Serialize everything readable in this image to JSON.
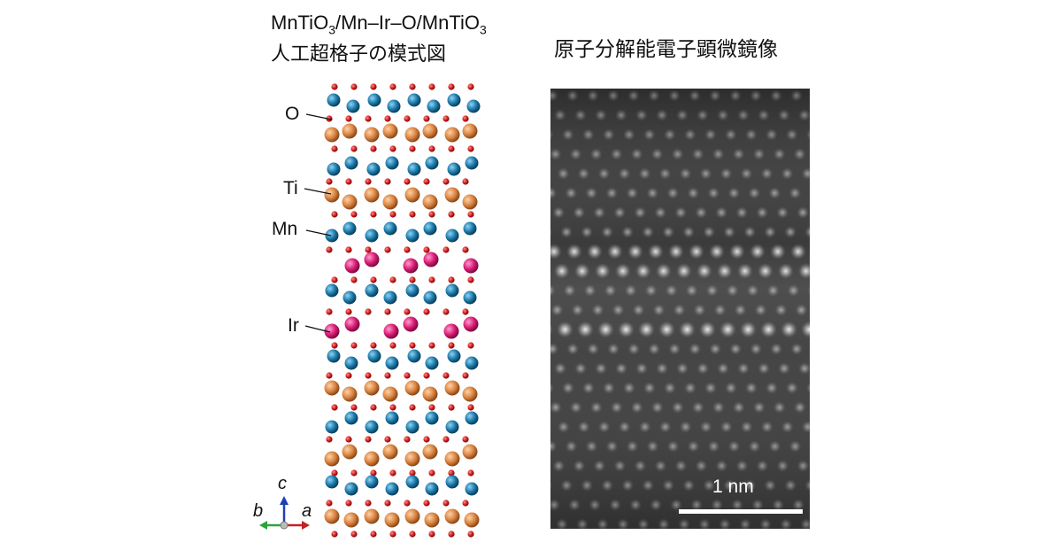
{
  "left_title": {
    "line1_parts": [
      "MnTiO",
      "3",
      "/Mn–Ir–O/MnTiO",
      "3"
    ],
    "line2": "人工超格子の模式図"
  },
  "right_title": "原子分解能電子顕微鏡像",
  "atom_labels": {
    "o": "O",
    "ti": "Ti",
    "mn": "Mn",
    "ir": "Ir"
  },
  "axes": {
    "c": "c",
    "b": "b",
    "a": "a"
  },
  "scale_bar_label": "1 nm",
  "colors": {
    "oxygen": "#d11f1f",
    "titanium": "#d9823f",
    "manganese": "#1a78a8",
    "iridium": "#d81b74",
    "axis_c": "#1f3fb5",
    "axis_b": "#2ca33a",
    "axis_a": "#c42020"
  }
}
